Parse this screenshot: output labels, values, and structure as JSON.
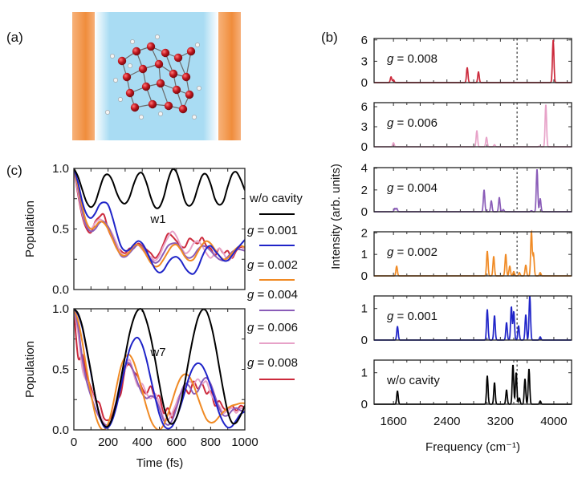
{
  "panel_labels": {
    "a": "(a)",
    "b": "(b)",
    "c": "(c)"
  },
  "colors": {
    "w/o cavity": "#000000",
    "g = 0.001": "#1f24c8",
    "g = 0.002": "#f08a24",
    "g = 0.004": "#8a5cb8",
    "g = 0.006": "#e7a2c8",
    "g = 0.008": "#cc2a3c",
    "cavity_mirror": "#f39a4c",
    "cavity_field": "#a9dcf3",
    "oxygen": "#c0161e",
    "hydrogen": "#f4f4f4"
  },
  "panel_a": {
    "illustration": "water cluster between two cavity mirrors"
  },
  "chart_data": [
    {
      "type": "line",
      "panel": "c-top",
      "annotation": "w1",
      "ylabel": "Population",
      "xlabel": "",
      "xlim": [
        0,
        1000
      ],
      "ylim": [
        0,
        1
      ],
      "yticks": [
        "0.0",
        "0.5",
        "1.0"
      ],
      "x_step": 25,
      "series": [
        {
          "name": "w/o cavity",
          "values": [
            1.0,
            0.93,
            0.82,
            0.72,
            0.68,
            0.72,
            0.83,
            0.93,
            0.95,
            0.9,
            0.8,
            0.73,
            0.71,
            0.76,
            0.87,
            0.95,
            0.96,
            0.88,
            0.76,
            0.68,
            0.68,
            0.76,
            0.9,
            0.99,
            0.97,
            0.86,
            0.73,
            0.69,
            0.73,
            0.84,
            0.94,
            0.95,
            0.87,
            0.75,
            0.7,
            0.73,
            0.85,
            0.95,
            0.97,
            0.91,
            0.82
          ]
        },
        {
          "name": "g = 0.001",
          "values": [
            1.0,
            0.88,
            0.72,
            0.62,
            0.59,
            0.63,
            0.7,
            0.72,
            0.7,
            0.6,
            0.47,
            0.36,
            0.32,
            0.33,
            0.37,
            0.4,
            0.38,
            0.32,
            0.24,
            0.17,
            0.14,
            0.16,
            0.22,
            0.26,
            0.27,
            0.24,
            0.18,
            0.14,
            0.13,
            0.18,
            0.27,
            0.34,
            0.36,
            0.32,
            0.28,
            0.24,
            0.24,
            0.28,
            0.33,
            0.37,
            0.41
          ]
        },
        {
          "name": "g = 0.002",
          "values": [
            1.0,
            0.85,
            0.68,
            0.55,
            0.5,
            0.52,
            0.56,
            0.55,
            0.5,
            0.42,
            0.34,
            0.29,
            0.28,
            0.31,
            0.36,
            0.37,
            0.34,
            0.28,
            0.22,
            0.19,
            0.2,
            0.25,
            0.31,
            0.36,
            0.37,
            0.33,
            0.27,
            0.24,
            0.25,
            0.31,
            0.37,
            0.4,
            0.38,
            0.33,
            0.28,
            0.25,
            0.26,
            0.3,
            0.34,
            0.36,
            0.35
          ]
        },
        {
          "name": "g = 0.004",
          "values": [
            1.0,
            0.83,
            0.64,
            0.52,
            0.48,
            0.5,
            0.55,
            0.56,
            0.52,
            0.44,
            0.35,
            0.28,
            0.27,
            0.3,
            0.34,
            0.37,
            0.35,
            0.3,
            0.25,
            0.22,
            0.24,
            0.3,
            0.36,
            0.38,
            0.38,
            0.34,
            0.28,
            0.26,
            0.28,
            0.33,
            0.36,
            0.35,
            0.32,
            0.28,
            0.25,
            0.24,
            0.27,
            0.31,
            0.33,
            0.33,
            0.32
          ]
        },
        {
          "name": "g = 0.006",
          "values": [
            1.0,
            0.8,
            0.62,
            0.52,
            0.5,
            0.55,
            0.58,
            0.56,
            0.52,
            0.46,
            0.38,
            0.3,
            0.28,
            0.32,
            0.36,
            0.37,
            0.33,
            0.29,
            0.27,
            0.24,
            0.28,
            0.36,
            0.43,
            0.48,
            0.44,
            0.36,
            0.3,
            0.32,
            0.38,
            0.4,
            0.36,
            0.3,
            0.26,
            0.3,
            0.34,
            0.3,
            0.24,
            0.27,
            0.33,
            0.36,
            0.34
          ]
        },
        {
          "name": "g = 0.008",
          "values": [
            1.0,
            0.78,
            0.6,
            0.5,
            0.47,
            0.56,
            0.6,
            0.62,
            0.5,
            0.42,
            0.36,
            0.32,
            0.3,
            0.34,
            0.34,
            0.38,
            0.36,
            0.33,
            0.3,
            0.26,
            0.3,
            0.38,
            0.46,
            0.44,
            0.4,
            0.36,
            0.35,
            0.42,
            0.4,
            0.38,
            0.43,
            0.36,
            0.34,
            0.28,
            0.34,
            0.3,
            0.32,
            0.26,
            0.32,
            0.35,
            0.34
          ]
        }
      ]
    },
    {
      "type": "line",
      "panel": "c-bottom",
      "annotation": "w7",
      "ylabel": "Population",
      "xlabel": "Time (fs)",
      "xlim": [
        0,
        1000
      ],
      "ylim": [
        0,
        1
      ],
      "xticks": [
        "0",
        "200",
        "400",
        "600",
        "800",
        "1000"
      ],
      "yticks": [
        "0.0",
        "0.5",
        "1.0"
      ],
      "x_step": 25,
      "series": [
        {
          "name": "w/o cavity",
          "values": [
            1.0,
            0.96,
            0.85,
            0.67,
            0.48,
            0.28,
            0.12,
            0.04,
            0.03,
            0.1,
            0.24,
            0.42,
            0.61,
            0.79,
            0.92,
            0.99,
            0.99,
            0.9,
            0.76,
            0.58,
            0.38,
            0.2,
            0.08,
            0.05,
            0.1,
            0.22,
            0.4,
            0.6,
            0.78,
            0.92,
            0.99,
            0.98,
            0.88,
            0.72,
            0.52,
            0.32,
            0.15,
            0.06,
            0.06,
            0.12,
            0.2
          ]
        },
        {
          "name": "g = 0.001",
          "values": [
            1.0,
            0.95,
            0.84,
            0.66,
            0.47,
            0.28,
            0.12,
            0.03,
            0.02,
            0.08,
            0.2,
            0.36,
            0.52,
            0.66,
            0.74,
            0.76,
            0.7,
            0.58,
            0.42,
            0.27,
            0.13,
            0.04,
            0.01,
            0.03,
            0.1,
            0.2,
            0.32,
            0.44,
            0.52,
            0.55,
            0.53,
            0.46,
            0.36,
            0.25,
            0.14,
            0.06,
            0.02,
            0.03,
            0.08,
            0.13,
            0.15
          ]
        },
        {
          "name": "g = 0.002",
          "values": [
            1.0,
            0.9,
            0.72,
            0.5,
            0.3,
            0.13,
            0.03,
            0.0,
            0.05,
            0.18,
            0.36,
            0.52,
            0.6,
            0.62,
            0.56,
            0.45,
            0.32,
            0.19,
            0.08,
            0.02,
            0.0,
            0.04,
            0.13,
            0.24,
            0.35,
            0.43,
            0.46,
            0.44,
            0.37,
            0.27,
            0.17,
            0.09,
            0.06,
            0.07,
            0.11,
            0.15,
            0.18,
            0.2,
            0.21,
            0.22,
            0.22
          ]
        },
        {
          "name": "g = 0.004",
          "values": [
            1.0,
            0.85,
            0.58,
            0.4,
            0.28,
            0.18,
            0.1,
            0.05,
            0.04,
            0.1,
            0.25,
            0.42,
            0.53,
            0.55,
            0.48,
            0.38,
            0.3,
            0.26,
            0.28,
            0.26,
            0.18,
            0.08,
            0.04,
            0.08,
            0.18,
            0.3,
            0.38,
            0.36,
            0.3,
            0.32,
            0.4,
            0.43,
            0.38,
            0.28,
            0.18,
            0.12,
            0.12,
            0.16,
            0.18,
            0.16,
            0.15
          ]
        },
        {
          "name": "g = 0.006",
          "values": [
            1.0,
            0.8,
            0.5,
            0.4,
            0.32,
            0.24,
            0.14,
            0.06,
            0.04,
            0.1,
            0.2,
            0.4,
            0.5,
            0.58,
            0.46,
            0.36,
            0.38,
            0.3,
            0.26,
            0.3,
            0.22,
            0.1,
            0.08,
            0.14,
            0.22,
            0.3,
            0.36,
            0.4,
            0.38,
            0.42,
            0.38,
            0.4,
            0.3,
            0.24,
            0.2,
            0.14,
            0.16,
            0.18,
            0.14,
            0.18,
            0.16
          ]
        },
        {
          "name": "g = 0.008",
          "values": [
            1.0,
            0.6,
            0.62,
            0.45,
            0.35,
            0.25,
            0.22,
            0.1,
            0.08,
            0.12,
            0.24,
            0.3,
            0.5,
            0.54,
            0.48,
            0.44,
            0.34,
            0.3,
            0.36,
            0.26,
            0.28,
            0.14,
            0.18,
            0.1,
            0.22,
            0.3,
            0.34,
            0.3,
            0.4,
            0.34,
            0.38,
            0.3,
            0.32,
            0.2,
            0.24,
            0.18,
            0.16,
            0.2,
            0.16,
            0.2,
            0.18
          ]
        }
      ]
    },
    {
      "type": "line",
      "panel": "b",
      "xlabel": "Frequency (cm⁻¹)",
      "ylabel": "Intensity (arb. units)",
      "xlim": [
        1310,
        4265
      ],
      "xticks": [
        "1600",
        "2400",
        "3200",
        "4000"
      ],
      "dashed_reference_x": 3450,
      "series": [
        {
          "name": "g = 0.008",
          "ylim": [
            0,
            6.2
          ],
          "yticks": [
            "0",
            "3",
            "6"
          ],
          "peaks": [
            [
              1564,
              0.8
            ],
            [
              1600,
              0.4
            ],
            [
              2704,
              2.1
            ],
            [
              2872,
              1.5
            ],
            [
              3990,
              6.0
            ]
          ]
        },
        {
          "name": "g = 0.006",
          "ylim": [
            0,
            6.6
          ],
          "yticks": [
            "0",
            "3",
            "6"
          ],
          "peaks": [
            [
              1600,
              0.6
            ],
            [
              2848,
              2.4
            ],
            [
              2992,
              1.4
            ],
            [
              3112,
              0.3
            ],
            [
              3784,
              0.1
            ],
            [
              3880,
              6.3
            ]
          ]
        },
        {
          "name": "g = 0.004",
          "ylim": [
            0,
            4.05
          ],
          "yticks": [
            "0",
            "2",
            "4"
          ],
          "peaks": [
            [
              1620,
              0.3
            ],
            [
              1650,
              0.3
            ],
            [
              2956,
              2.0
            ],
            [
              3064,
              1.0
            ],
            [
              3184,
              1.3
            ],
            [
              3244,
              0.2
            ],
            [
              3664,
              0.1
            ],
            [
              3748,
              3.9
            ],
            [
              3796,
              1.2
            ]
          ]
        },
        {
          "name": "g = 0.002",
          "ylim": [
            0,
            2.05
          ],
          "yticks": [
            "0",
            "1",
            "2"
          ],
          "peaks": [
            [
              1648,
              0.45
            ],
            [
              3004,
              1.15
            ],
            [
              3100,
              0.9
            ],
            [
              3280,
              1.0
            ],
            [
              3340,
              0.45
            ],
            [
              3400,
              0.2
            ],
            [
              3484,
              0.15
            ],
            [
              3580,
              0.5
            ],
            [
              3664,
              2.05
            ],
            [
              3695,
              1.0
            ],
            [
              3796,
              0.15
            ]
          ]
        },
        {
          "name": "g = 0.001",
          "ylim": [
            0,
            1.4
          ],
          "yticks": [
            "0",
            "1"
          ],
          "peaks": [
            [
              1660,
              0.43
            ],
            [
              3004,
              0.97
            ],
            [
              3112,
              0.77
            ],
            [
              3292,
              0.55
            ],
            [
              3364,
              1.05
            ],
            [
              3400,
              0.9
            ],
            [
              3472,
              0.45
            ],
            [
              3580,
              0.8
            ],
            [
              3640,
              1.4
            ],
            [
              3796,
              0.1
            ]
          ]
        },
        {
          "name": "w/o cavity",
          "ylim": [
            0,
            1.4
          ],
          "yticks": [
            "0",
            "1"
          ],
          "peaks": [
            [
              1660,
              0.42
            ],
            [
              3004,
              0.9
            ],
            [
              3112,
              0.68
            ],
            [
              3292,
              0.45
            ],
            [
              3388,
              1.25
            ],
            [
              3436,
              1.0
            ],
            [
              3484,
              0.2
            ],
            [
              3568,
              0.8
            ],
            [
              3628,
              1.12
            ],
            [
              3796,
              0.1
            ]
          ]
        }
      ]
    }
  ]
}
